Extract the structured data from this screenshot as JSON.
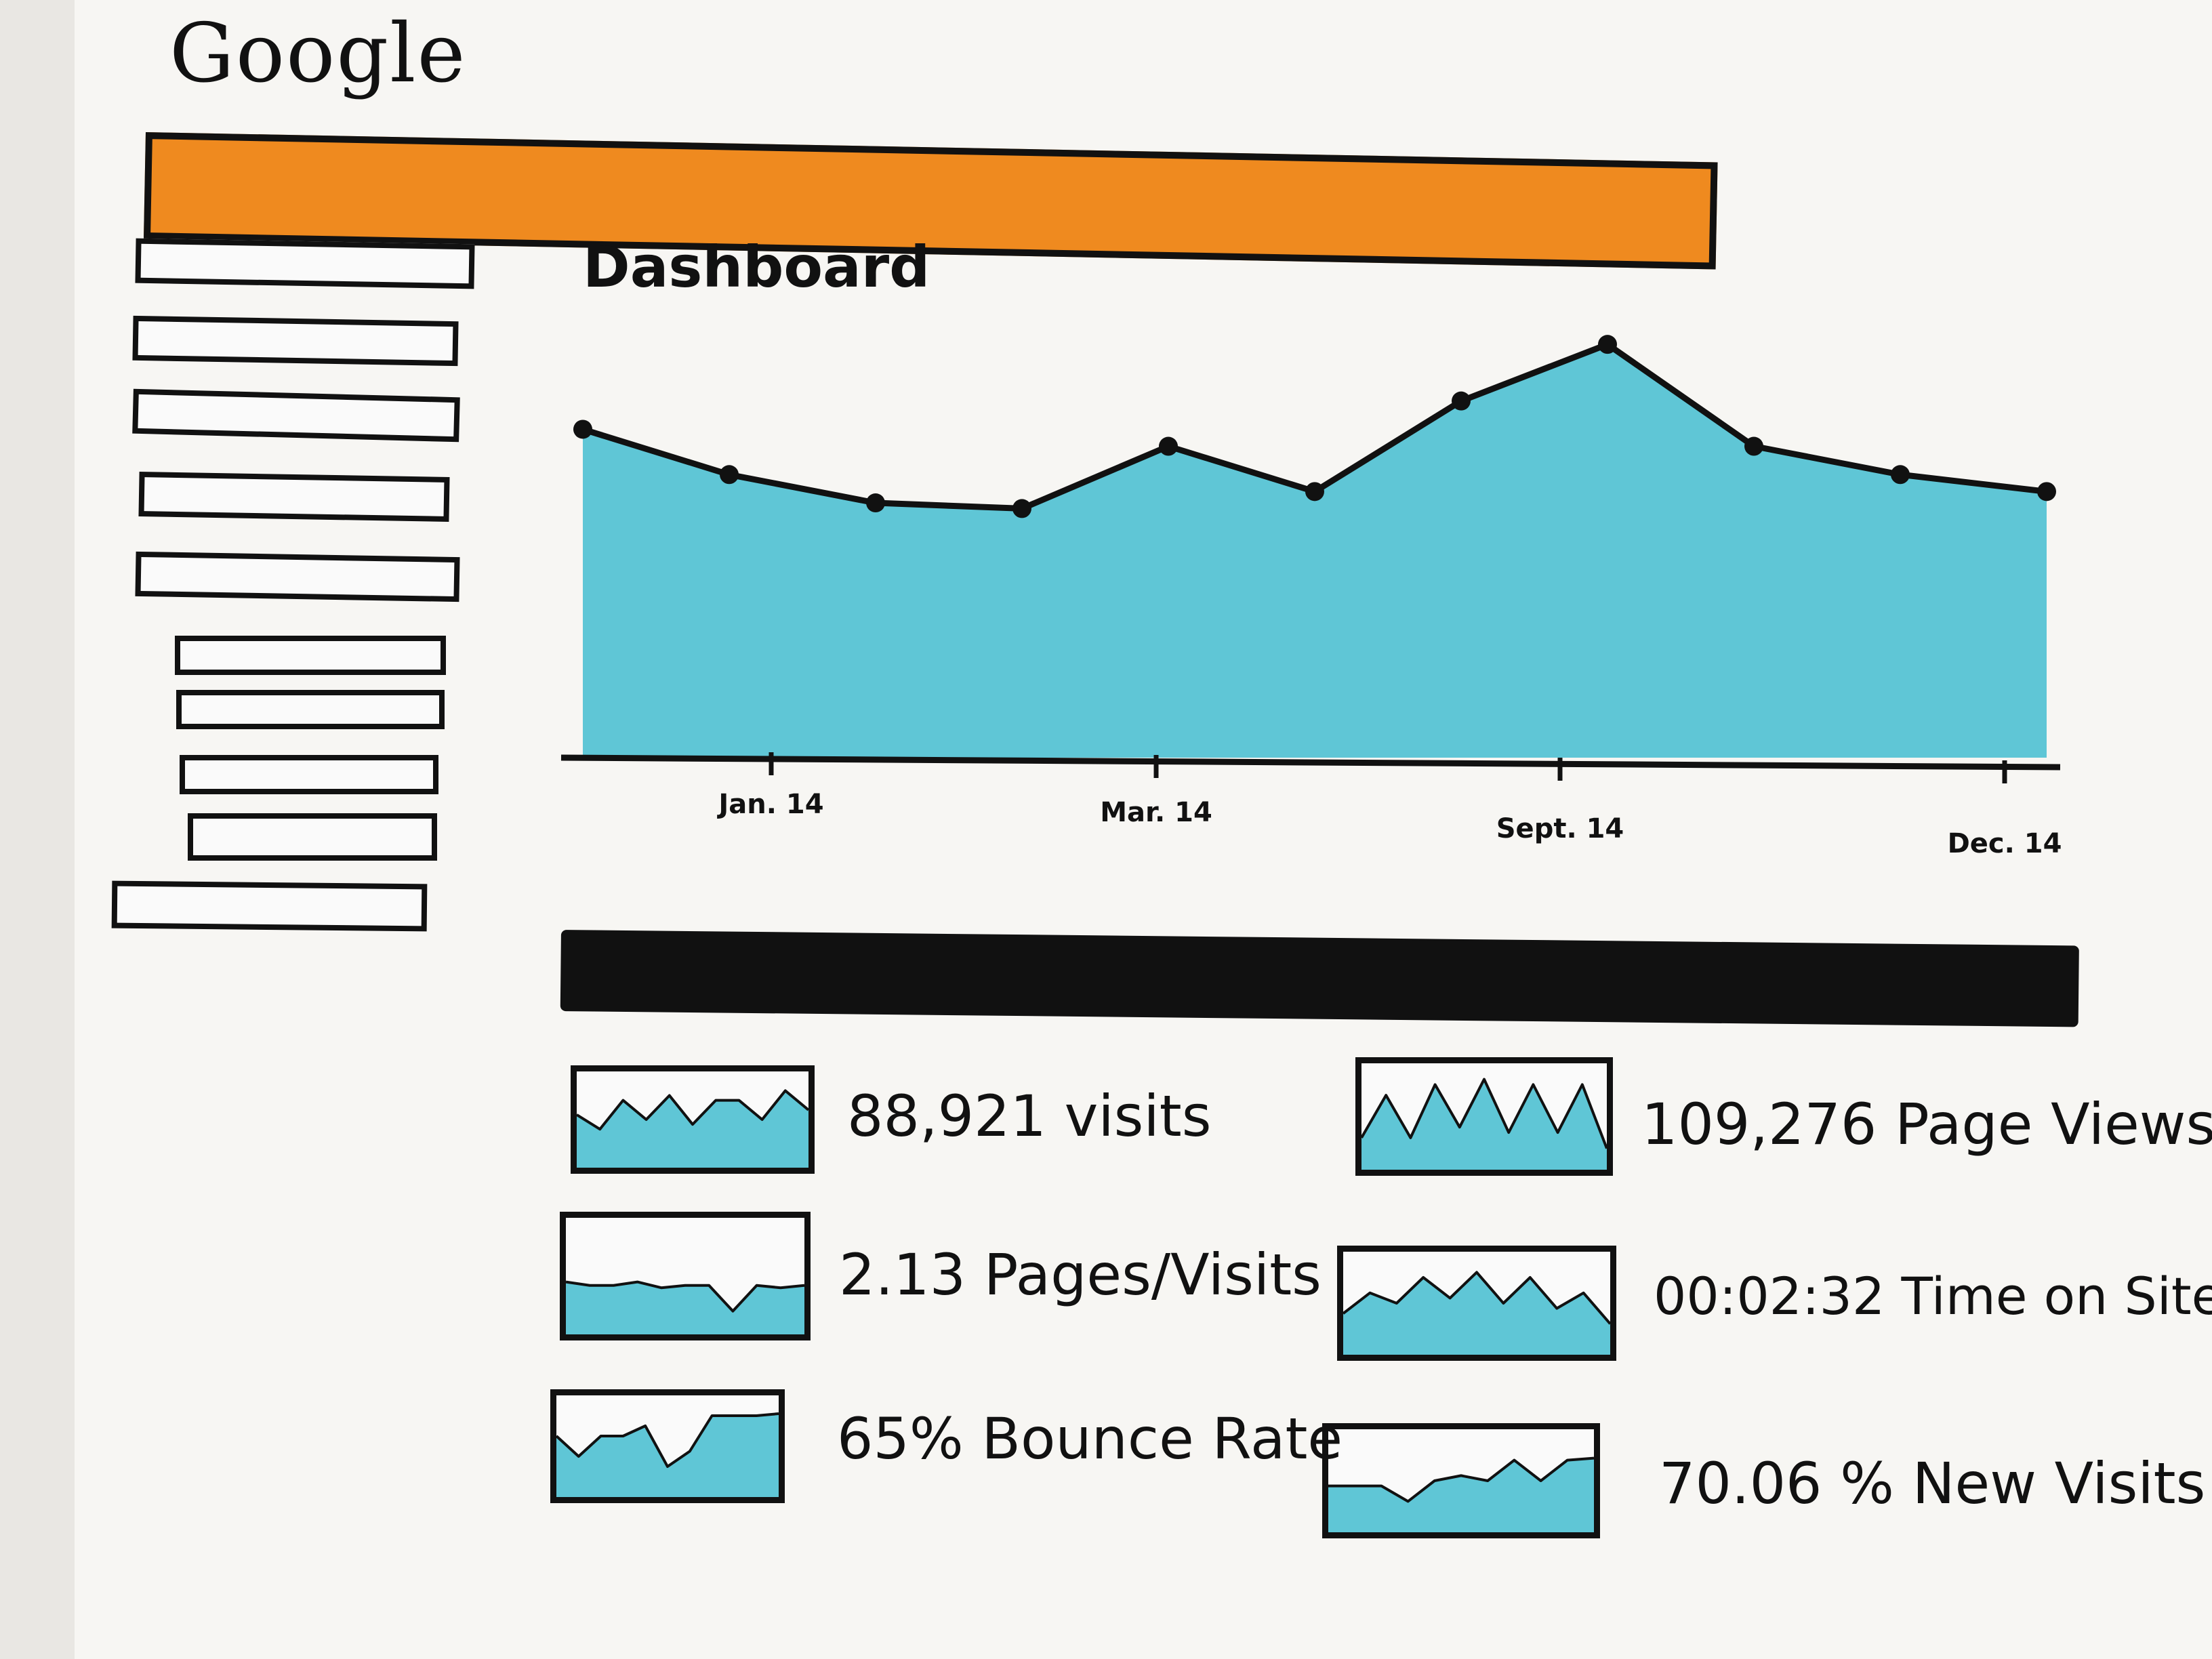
{
  "app": {
    "logo_text": "Google"
  },
  "colors": {
    "header_bar": "#ef8a1f",
    "chart_fill": "#5fc6d6",
    "ink": "#111111",
    "paper": "#f7f6f3"
  },
  "sidebar": {
    "item_count": 11
  },
  "main": {
    "title": "Dashboard"
  },
  "chart_data": {
    "type": "area",
    "title": "",
    "xlabel": "",
    "ylabel": "",
    "x_tick_labels": [
      "Jan. 14",
      "Mar. 14",
      "Sept. 14",
      "Dec. 14"
    ],
    "series": [
      {
        "values": [
          58,
          50,
          45,
          44,
          55,
          47,
          63,
          73,
          55,
          50,
          47
        ]
      }
    ],
    "ylim": [
      0,
      100
    ],
    "grid": false,
    "legend": "none"
  },
  "metrics": [
    {
      "label": "88,921 visits",
      "spark": [
        55,
        40,
        70,
        50,
        75,
        45,
        70,
        70,
        50,
        80,
        60
      ]
    },
    {
      "label": "2.13 Pages/Visits",
      "spark": [
        45,
        42,
        42,
        45,
        40,
        42,
        42,
        20,
        42,
        40,
        42
      ]
    },
    {
      "label": "65% Bounce Rate",
      "spark": [
        60,
        40,
        60,
        60,
        70,
        30,
        45,
        80,
        80,
        80,
        82
      ]
    },
    {
      "label": "109,276 Page Views",
      "spark": [
        30,
        70,
        30,
        80,
        40,
        85,
        35,
        80,
        35,
        80,
        20
      ]
    },
    {
      "label": "00:02:32 Time on Site",
      "spark": [
        40,
        60,
        50,
        75,
        55,
        80,
        50,
        75,
        45,
        60,
        30
      ]
    },
    {
      "label": "70.06 % New Visits",
      "spark": [
        45,
        45,
        45,
        30,
        50,
        55,
        50,
        70,
        50,
        70,
        72
      ]
    }
  ]
}
